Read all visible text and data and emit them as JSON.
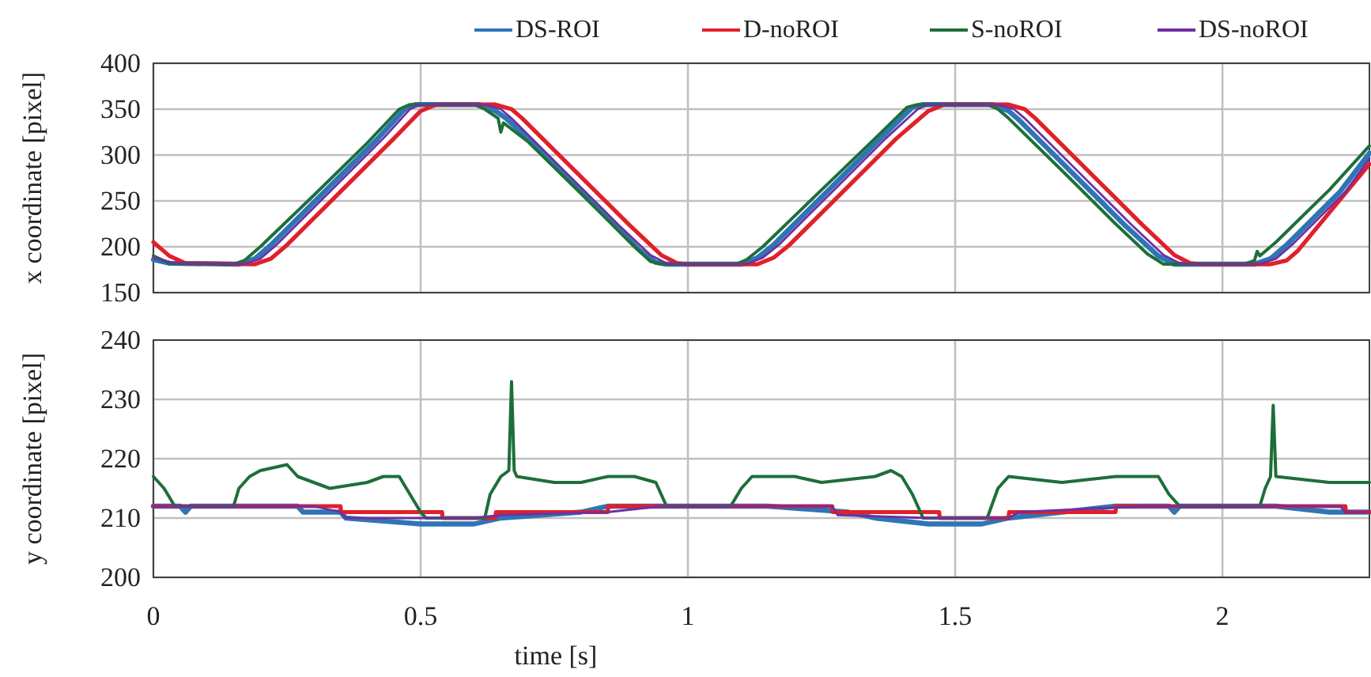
{
  "chart_data": [
    {
      "type": "line",
      "ylabel": "x coordinate [pixel]",
      "xlim": [
        0,
        2.275
      ],
      "xticks": [
        0,
        0.5,
        1,
        1.5,
        2
      ],
      "ylim": [
        150,
        400
      ],
      "yticks": [
        150,
        200,
        250,
        300,
        350,
        400
      ],
      "grid": true,
      "legend": "top",
      "tick_labels": "y",
      "marker": "none",
      "line_style": "solid",
      "series": [
        {
          "name": "DS-ROI",
          "color": "#2e75b6",
          "x": [
            0,
            0.03,
            0.16,
            0.19,
            0.22,
            0.32,
            0.42,
            0.47,
            0.49,
            0.61,
            0.64,
            0.66,
            0.72,
            0.82,
            0.91,
            0.94,
            0.96,
            1.1,
            1.13,
            1.16,
            1.26,
            1.36,
            1.42,
            1.44,
            1.57,
            1.6,
            1.62,
            1.72,
            1.82,
            1.88,
            1.91,
            2.06,
            2.09,
            2.12,
            2.22,
            2.275
          ],
          "values": [
            186,
            182,
            181,
            187,
            202,
            260,
            318,
            350,
            355,
            355,
            348,
            340,
            308,
            250,
            196,
            183,
            181,
            181,
            188,
            202,
            260,
            318,
            352,
            355,
            355,
            348,
            338,
            280,
            222,
            190,
            181,
            181,
            187,
            202,
            260,
            302
          ]
        },
        {
          "name": "D-noROI",
          "color": "#e0202a",
          "x": [
            0,
            0.03,
            0.06,
            0.19,
            0.22,
            0.25,
            0.35,
            0.45,
            0.5,
            0.53,
            0.64,
            0.67,
            0.69,
            0.79,
            0.89,
            0.95,
            0.98,
            1,
            1.13,
            1.16,
            1.19,
            1.29,
            1.39,
            1.45,
            1.48,
            1.6,
            1.63,
            1.65,
            1.75,
            1.85,
            1.91,
            1.94,
            1.96,
            2.09,
            2.12,
            2.14,
            2.275
          ],
          "values": [
            205,
            190,
            182,
            181,
            187,
            202,
            260,
            318,
            348,
            355,
            355,
            350,
            340,
            282,
            224,
            191,
            182,
            181,
            181,
            188,
            202,
            260,
            318,
            348,
            355,
            355,
            350,
            340,
            282,
            224,
            191,
            182,
            181,
            181,
            185,
            195,
            290
          ]
        },
        {
          "name": "S-noROI",
          "color": "#1e6e3a",
          "x": [
            0,
            0.03,
            0.15,
            0.17,
            0.2,
            0.3,
            0.4,
            0.46,
            0.48,
            0.6,
            0.62,
            0.645,
            0.65,
            0.655,
            0.7,
            0.8,
            0.9,
            0.93,
            0.95,
            1.09,
            1.11,
            1.14,
            1.25,
            1.35,
            1.41,
            1.43,
            1.56,
            1.58,
            1.6,
            1.7,
            1.8,
            1.86,
            1.89,
            2.04,
            2.06,
            2.065,
            2.07,
            2.1,
            2.2,
            2.275
          ],
          "values": [
            190,
            182,
            181,
            185,
            200,
            256,
            313,
            350,
            355,
            355,
            350,
            340,
            325,
            335,
            315,
            258,
            200,
            184,
            181,
            181,
            186,
            200,
            262,
            318,
            352,
            355,
            355,
            350,
            340,
            283,
            225,
            192,
            181,
            181,
            185,
            195,
            190,
            205,
            262,
            310
          ]
        },
        {
          "name": "DS-noROI",
          "color": "#7030a0",
          "x": [
            0,
            0.04,
            0.17,
            0.2,
            0.23,
            0.33,
            0.43,
            0.48,
            0.5,
            0.62,
            0.65,
            0.67,
            0.77,
            0.87,
            0.93,
            0.96,
            0.98,
            1.11,
            1.14,
            1.17,
            1.27,
            1.37,
            1.43,
            1.45,
            1.58,
            1.61,
            1.63,
            1.73,
            1.83,
            1.89,
            1.92,
            1.94,
            2.07,
            2.1,
            2.13,
            2.23,
            2.275
          ],
          "values": [
            188,
            182,
            181,
            187,
            202,
            260,
            318,
            350,
            355,
            355,
            350,
            340,
            282,
            224,
            191,
            182,
            181,
            181,
            188,
            202,
            260,
            318,
            350,
            355,
            355,
            350,
            340,
            282,
            224,
            191,
            182,
            181,
            181,
            187,
            202,
            260,
            296
          ]
        }
      ]
    },
    {
      "type": "line",
      "xlabel": "time [s]",
      "ylabel": "y coordinate [pixel]",
      "xlim": [
        0,
        2.275
      ],
      "xticks": [
        0,
        0.5,
        1,
        1.5,
        2
      ],
      "ylim": [
        200,
        240
      ],
      "yticks": [
        200,
        210,
        220,
        230,
        240
      ],
      "grid": true,
      "marker": "none",
      "line_style": "solid",
      "series": [
        {
          "color": "#2e75b6",
          "x": [
            0,
            0.05,
            0.06,
            0.07,
            0.27,
            0.28,
            0.35,
            0.36,
            0.5,
            0.6,
            0.65,
            0.8,
            0.85,
            1.15,
            1.3,
            1.35,
            1.45,
            1.55,
            1.6,
            1.7,
            1.8,
            1.9,
            1.91,
            1.92,
            2.1,
            2.2,
            2.275
          ],
          "values": [
            212,
            212,
            211,
            212,
            212,
            211,
            211,
            210,
            209,
            209,
            210,
            211,
            212,
            212,
            211,
            210,
            209,
            209,
            210,
            211,
            212,
            212,
            211,
            212,
            212,
            211,
            211
          ]
        },
        {
          "color": "#e0202a",
          "x": [
            0,
            0.35,
            0.351,
            0.54,
            0.541,
            0.64,
            0.641,
            0.85,
            0.851,
            1.27,
            1.271,
            1.47,
            1.471,
            1.6,
            1.601,
            1.8,
            1.801,
            2.23,
            2.231,
            2.275
          ],
          "values": [
            212,
            212,
            211,
            211,
            210,
            210,
            211,
            211,
            212,
            212,
            211,
            211,
            210,
            210,
            211,
            211,
            212,
            212,
            211,
            211
          ]
        },
        {
          "color": "#1e6e3a",
          "x": [
            0,
            0.02,
            0.04,
            0.15,
            0.16,
            0.18,
            0.2,
            0.25,
            0.27,
            0.3,
            0.33,
            0.4,
            0.43,
            0.46,
            0.48,
            0.5,
            0.51,
            0.62,
            0.63,
            0.65,
            0.665,
            0.67,
            0.675,
            0.68,
            0.75,
            0.8,
            0.85,
            0.9,
            0.94,
            0.96,
            1,
            1.08,
            1.1,
            1.12,
            1.2,
            1.25,
            1.35,
            1.38,
            1.4,
            1.42,
            1.44,
            1.56,
            1.58,
            1.6,
            1.7,
            1.8,
            1.88,
            1.9,
            1.92,
            2.07,
            2.08,
            2.09,
            2.095,
            2.1,
            2.2,
            2.275
          ],
          "values": [
            217,
            215,
            212,
            212,
            215,
            217,
            218,
            219,
            217,
            216,
            215,
            216,
            217,
            217,
            214,
            211,
            210,
            210,
            214,
            217,
            218,
            233,
            218,
            217,
            216,
            216,
            217,
            217,
            216,
            212,
            212,
            212,
            215,
            217,
            217,
            216,
            217,
            218,
            217,
            214,
            210,
            210,
            215,
            217,
            216,
            217,
            217,
            214,
            212,
            212,
            215,
            217,
            229,
            217,
            216,
            216
          ]
        },
        {
          "color": "#7030a0",
          "x": [
            0,
            0.3,
            0.35,
            0.36,
            0.6,
            0.65,
            0.85,
            0.95,
            1.27,
            1.28,
            1.45,
            1.6,
            1.62,
            1.85,
            2.22,
            2.23,
            2.275
          ],
          "values": [
            212,
            212,
            211,
            210,
            210,
            210.5,
            211,
            212,
            212,
            210.5,
            210,
            210,
            211,
            212,
            212,
            211,
            211
          ]
        }
      ]
    }
  ]
}
